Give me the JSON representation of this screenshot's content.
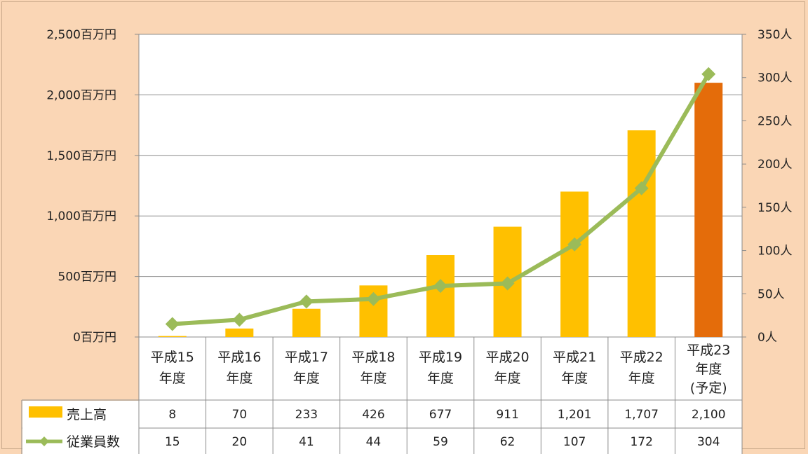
{
  "chart_data": {
    "type": "bar+line",
    "categories": [
      [
        "平成15",
        "年度"
      ],
      [
        "平成16",
        "年度"
      ],
      [
        "平成17",
        "年度"
      ],
      [
        "平成18",
        "年度"
      ],
      [
        "平成19",
        "年度"
      ],
      [
        "平成20",
        "年度"
      ],
      [
        "平成21",
        "年度"
      ],
      [
        "平成22",
        "年度"
      ],
      [
        "平成23",
        "年度",
        "(予定)"
      ]
    ],
    "series": [
      {
        "name": "売上高",
        "type": "bar",
        "axis": "left",
        "values": [
          8,
          70,
          233,
          426,
          677,
          911,
          1201,
          1707,
          2100
        ],
        "table_labels": [
          "8",
          "70",
          "233",
          "426",
          "677",
          "911",
          "1,201",
          "1,707",
          "2,100"
        ],
        "color": "#ffc000",
        "highlight_last_color": "#e46c0a"
      },
      {
        "name": "従業員数",
        "type": "line",
        "axis": "right",
        "values": [
          15,
          20,
          41,
          44,
          59,
          62,
          107,
          172,
          304
        ],
        "table_labels": [
          "15",
          "20",
          "41",
          "44",
          "59",
          "62",
          "107",
          "172",
          "304"
        ],
        "color": "#9bbb59"
      }
    ],
    "left_axis": {
      "ylim": [
        0,
        2500
      ],
      "ticks": [
        0,
        500,
        1000,
        1500,
        2000,
        2500
      ],
      "tick_labels": [
        "0百万円",
        "500百万円",
        "1,000百万円",
        "1,500百万円",
        "2,000百万円",
        "2,500百万円"
      ]
    },
    "right_axis": {
      "ylim": [
        0,
        350
      ],
      "ticks": [
        0,
        50,
        100,
        150,
        200,
        250,
        300,
        350
      ],
      "tick_labels": [
        "0人",
        "50人",
        "100人",
        "150人",
        "200人",
        "250人",
        "300人",
        "350人"
      ]
    },
    "grid": true,
    "legend": "data-table-left",
    "background": "#fad6b5",
    "plot_background": "#ffffff"
  }
}
